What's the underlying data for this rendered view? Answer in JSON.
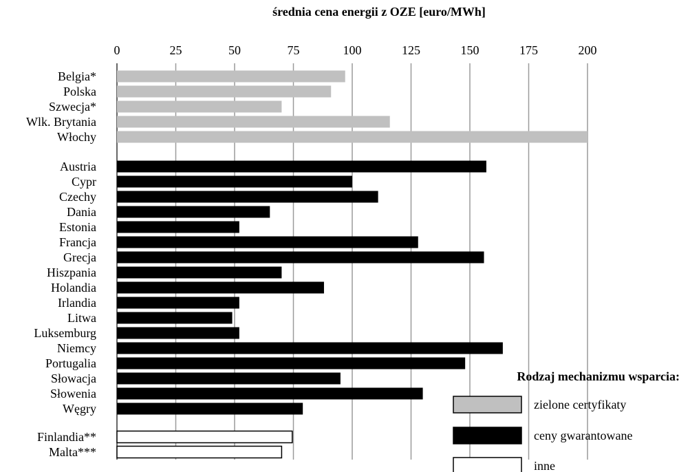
{
  "chart_data": {
    "type": "bar",
    "orientation": "horizontal",
    "title": "średnia cena energii z OZE [euro/MWh]",
    "xlim": [
      0,
      200
    ],
    "x_ticks": [
      "0",
      "25",
      "50",
      "75",
      "100",
      "125",
      "150",
      "175",
      "200"
    ],
    "grid": "vertical",
    "series": [
      {
        "name": "zielone certyfikaty",
        "color": "#c0c0c0",
        "border": "#c0c0c0",
        "categories": [
          "Belgia*",
          "Polska",
          "Szwecja*",
          "Wlk. Brytania",
          "Włochy"
        ],
        "values": [
          97,
          91,
          70,
          116,
          200
        ]
      },
      {
        "name": "ceny gwarantowane",
        "color": "#000000",
        "border": "#000000",
        "categories": [
          "Austria",
          "Cypr",
          "Czechy",
          "Dania",
          "Estonia",
          "Francja",
          "Grecja",
          "Hiszpania",
          "Holandia",
          "Irlandia",
          "Litwa",
          "Luksemburg",
          "Niemcy",
          "Portugalia",
          "Słowacja",
          "Słowenia",
          "Węgry"
        ],
        "values": [
          157,
          100,
          111,
          65,
          52,
          128,
          156,
          70,
          88,
          52,
          49,
          52,
          164,
          148,
          95,
          130,
          79
        ]
      },
      {
        "name": "inne",
        "color": "#ffffff",
        "border": "#000000",
        "categories": [
          "Finlandia**",
          "Malta***"
        ],
        "values": [
          74.5,
          70
        ]
      }
    ],
    "legend": {
      "title": "Rodzaj mechanizmu wsparcia:",
      "placement": "bottom-right"
    }
  }
}
